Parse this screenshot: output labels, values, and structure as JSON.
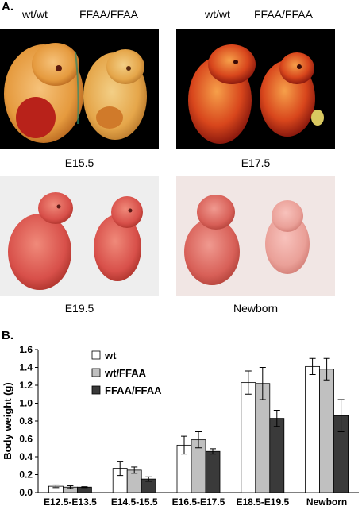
{
  "panel_a": {
    "label": "A.",
    "headers": {
      "left_wt": "wt/wt",
      "left_mut": "FFAA/FFAA",
      "right_wt": "wt/wt",
      "right_mut": "FFAA/FFAA"
    },
    "captions": {
      "tl": "E15.5",
      "tr": "E17.5",
      "bl": "E19.5",
      "br": "Newborn"
    }
  },
  "panel_b": {
    "label": "B."
  },
  "chart_data": {
    "type": "bar",
    "ylabel": "Body weight (g)",
    "xlabel": "",
    "ylim": [
      0,
      1.6
    ],
    "yticks": [
      "0.0",
      "0.2",
      "0.4",
      "0.6",
      "0.8",
      "1.0",
      "1.2",
      "1.4",
      "1.6"
    ],
    "categories": [
      "E12.5-E13.5",
      "E14.5-15.5",
      "E16.5-E17.5",
      "E18.5-E19.5",
      "Newborn"
    ],
    "legend_position": "top-left",
    "series": [
      {
        "name": "wt",
        "color": "#ffffff",
        "values": [
          0.07,
          0.27,
          0.53,
          1.23,
          1.41
        ],
        "errors": [
          0.015,
          0.08,
          0.1,
          0.13,
          0.09
        ]
      },
      {
        "name": "wt/FFAA",
        "color": "#c0c0c0",
        "values": [
          0.06,
          0.25,
          0.59,
          1.22,
          1.38
        ],
        "errors": [
          0.015,
          0.035,
          0.09,
          0.18,
          0.12
        ]
      },
      {
        "name": "FFAA/FFAA",
        "color": "#3a3a3a",
        "values": [
          0.06,
          0.15,
          0.46,
          0.83,
          0.86
        ],
        "errors": [
          0.005,
          0.025,
          0.03,
          0.09,
          0.18
        ]
      }
    ]
  }
}
